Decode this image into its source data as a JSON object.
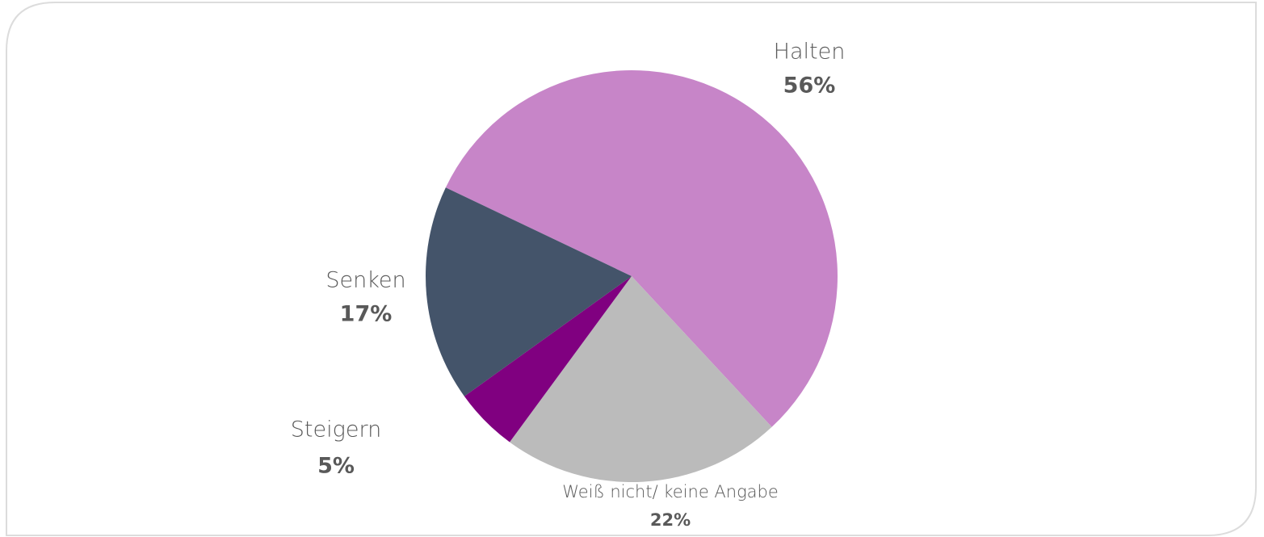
{
  "chart_data": {
    "type": "pie",
    "categories": [
      "Halten",
      "Weiß nicht/ keine Angabe",
      "Steigern",
      "Senken"
    ],
    "values": [
      56,
      22,
      5,
      17
    ],
    "value_labels": [
      "56%",
      "22%",
      "5%",
      "17%"
    ],
    "colors": [
      "#c785c8",
      "#bbbbbb",
      "#800080",
      "#44546a"
    ]
  }
}
